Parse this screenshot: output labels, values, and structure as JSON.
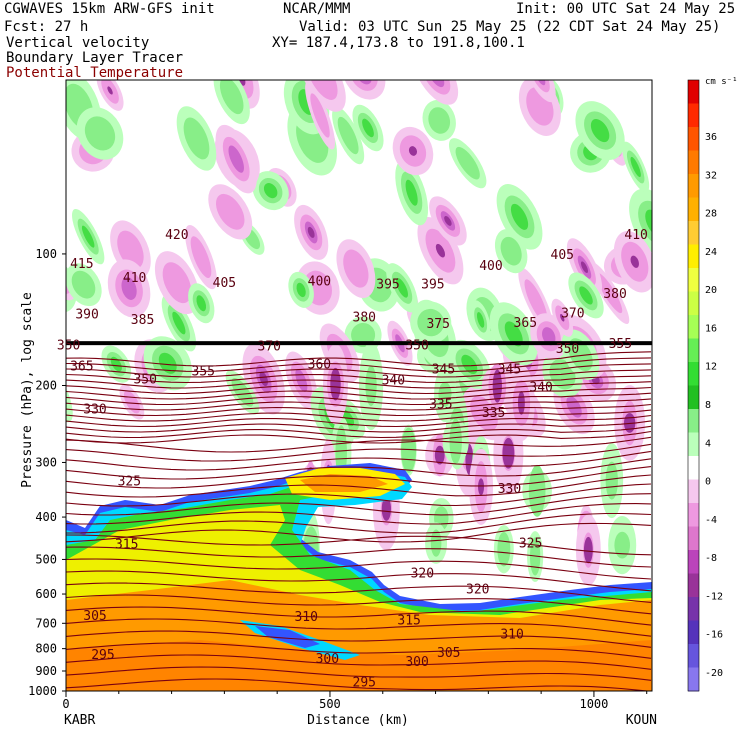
{
  "header": {
    "model": "CGWAVES 15km ARW-GFS init",
    "org": "NCAR/MMM",
    "init": "Init: 00 UTC Sat 24 May 25",
    "fcst": "Fcst:   27 h",
    "valid": "Valid: 03 UTC Sun 25 May 25 (22 CDT Sat 24 May 25)",
    "field1": "Vertical velocity",
    "field2": "Boundary Layer Tracer",
    "field3": "Potential Temperature",
    "xy": "XY= 187.4,173.8 to 191.8,100.1",
    "colors": {
      "field3": "#8b0000"
    }
  },
  "chart_data": {
    "type": "heatmap",
    "xlabel": "Distance (km)",
    "ylabel": "Pressure (hPa), log scale",
    "x_range_km": [
      0,
      1110
    ],
    "y_range_hpa": [
      1000,
      40
    ],
    "y_scale": "log",
    "x_ticks": [
      0,
      500,
      1000
    ],
    "y_ticks": [
      100,
      200,
      300,
      400,
      500,
      600,
      700,
      800,
      900,
      1000
    ],
    "endpoints": {
      "left": "KABR",
      "right": "KOUN"
    },
    "colorbar": {
      "unit": "cm s⁻¹",
      "tick_labels": [
        "36",
        "32",
        "28",
        "24",
        "20",
        "16",
        "12",
        "8",
        "4",
        "0",
        "-4",
        "-8",
        "-12",
        "-16",
        "-20"
      ],
      "colors": [
        "#e00000",
        "#ff2a00",
        "#ff5500",
        "#ff7a00",
        "#ff9a00",
        "#ffb000",
        "#ffcc33",
        "#ffee00",
        "#f0ff40",
        "#ccff44",
        "#a6ff55",
        "#66ee55",
        "#33dd33",
        "#22c022",
        "#88ee88",
        "#bbffbb",
        "#ffffff",
        "#f5c8ee",
        "#ee99e0",
        "#dd77cc",
        "#bb44bb",
        "#993399",
        "#7733aa",
        "#5533bb",
        "#6655dd",
        "#8877ee"
      ]
    },
    "tropopause_hpa": 160,
    "theta_contours_K": [
      {
        "value": "415",
        "x_km": 30,
        "p_hpa": 105
      },
      {
        "value": "420",
        "x_km": 210,
        "p_hpa": 90
      },
      {
        "value": "410",
        "x_km": 130,
        "p_hpa": 113
      },
      {
        "value": "405",
        "x_km": 300,
        "p_hpa": 116
      },
      {
        "value": "400",
        "x_km": 480,
        "p_hpa": 115
      },
      {
        "value": "395",
        "x_km": 610,
        "p_hpa": 117
      },
      {
        "value": "395",
        "x_km": 695,
        "p_hpa": 117
      },
      {
        "value": "400",
        "x_km": 805,
        "p_hpa": 106
      },
      {
        "value": "405",
        "x_km": 940,
        "p_hpa": 100
      },
      {
        "value": "410",
        "x_km": 1080,
        "p_hpa": 90
      },
      {
        "value": "390",
        "x_km": 40,
        "p_hpa": 137
      },
      {
        "value": "385",
        "x_km": 145,
        "p_hpa": 141
      },
      {
        "value": "380",
        "x_km": 565,
        "p_hpa": 139
      },
      {
        "value": "375",
        "x_km": 705,
        "p_hpa": 144
      },
      {
        "value": "365",
        "x_km": 870,
        "p_hpa": 143
      },
      {
        "value": "370",
        "x_km": 960,
        "p_hpa": 136
      },
      {
        "value": "380",
        "x_km": 1040,
        "p_hpa": 123
      },
      {
        "value": "350",
        "x_km": 5,
        "p_hpa": 161
      },
      {
        "value": "370",
        "x_km": 385,
        "p_hpa": 162
      },
      {
        "value": "350",
        "x_km": 665,
        "p_hpa": 161
      },
      {
        "value": "350",
        "x_km": 950,
        "p_hpa": 164
      },
      {
        "value": "355",
        "x_km": 1050,
        "p_hpa": 160
      },
      {
        "value": "365",
        "x_km": 30,
        "p_hpa": 180
      },
      {
        "value": "360",
        "x_km": 480,
        "p_hpa": 178
      },
      {
        "value": "355",
        "x_km": 260,
        "p_hpa": 185
      },
      {
        "value": "350",
        "x_km": 150,
        "p_hpa": 193
      },
      {
        "value": "345",
        "x_km": 715,
        "p_hpa": 183
      },
      {
        "value": "345",
        "x_km": 840,
        "p_hpa": 183
      },
      {
        "value": "340",
        "x_km": 620,
        "p_hpa": 194
      },
      {
        "value": "340",
        "x_km": 900,
        "p_hpa": 201
      },
      {
        "value": "330",
        "x_km": 55,
        "p_hpa": 226
      },
      {
        "value": "335",
        "x_km": 710,
        "p_hpa": 220
      },
      {
        "value": "335",
        "x_km": 810,
        "p_hpa": 230
      },
      {
        "value": "325",
        "x_km": 120,
        "p_hpa": 330
      },
      {
        "value": "330",
        "x_km": 840,
        "p_hpa": 343
      },
      {
        "value": "315",
        "x_km": 115,
        "p_hpa": 460
      },
      {
        "value": "325",
        "x_km": 880,
        "p_hpa": 457
      },
      {
        "value": "320",
        "x_km": 675,
        "p_hpa": 536
      },
      {
        "value": "320",
        "x_km": 780,
        "p_hpa": 583
      },
      {
        "value": "305",
        "x_km": 55,
        "p_hpa": 670
      },
      {
        "value": "310",
        "x_km": 455,
        "p_hpa": 673
      },
      {
        "value": "315",
        "x_km": 650,
        "p_hpa": 686
      },
      {
        "value": "310",
        "x_km": 845,
        "p_hpa": 738
      },
      {
        "value": "295",
        "x_km": 70,
        "p_hpa": 822
      },
      {
        "value": "300",
        "x_km": 495,
        "p_hpa": 840
      },
      {
        "value": "300",
        "x_km": 665,
        "p_hpa": 853
      },
      {
        "value": "305",
        "x_km": 725,
        "p_hpa": 815
      },
      {
        "value": "295",
        "x_km": 565,
        "p_hpa": 952
      }
    ]
  }
}
